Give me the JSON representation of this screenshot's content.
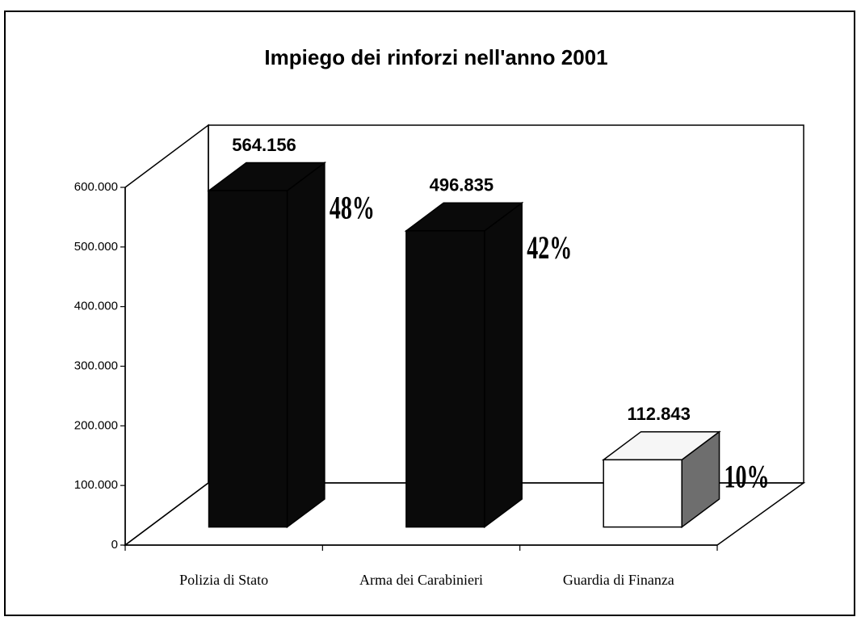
{
  "chart_data": {
    "type": "bar3d",
    "title": "Impiego dei rinforzi nell'anno 2001",
    "categories": [
      "Polizia di Stato",
      "Arma dei Carabinieri",
      "Guardia di Finanza"
    ],
    "values": [
      564156,
      496835,
      112843
    ],
    "value_labels": [
      "564.156",
      "496.835",
      "112.843"
    ],
    "percent_values": [
      48,
      42,
      10
    ],
    "percent_labels": [
      "48%",
      "42%",
      "10%"
    ],
    "colors": [
      "#0a0a0a",
      "#0a0a0a",
      "#ffffff"
    ],
    "ylim": [
      0,
      600000
    ],
    "yticks": [
      0,
      {
        "value": 100000,
        "label": "100.000"
      },
      {
        "value": 200000,
        "label": "200.000"
      },
      {
        "value": 300000,
        "label": "300.000"
      },
      {
        "value": 400000,
        "label": "400.000"
      },
      {
        "value": 500000,
        "label": "500.000"
      },
      {
        "value": 600000,
        "label": "600.000"
      }
    ]
  }
}
